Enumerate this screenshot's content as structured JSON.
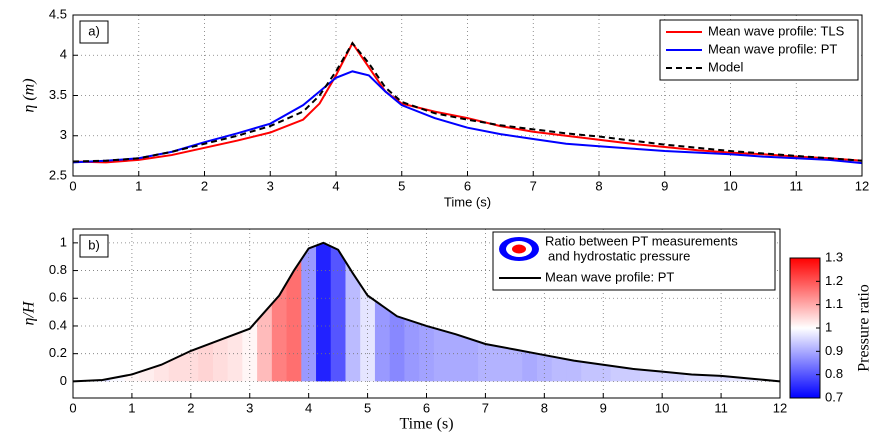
{
  "chart_data": [
    {
      "type": "line",
      "annotation": "a)",
      "xlabel": "Time (s)",
      "ylabel": "η (m)",
      "xlim": [
        0,
        12
      ],
      "ylim": [
        2.5,
        4.5
      ],
      "xticks": [
        0,
        1,
        2,
        3,
        4,
        5,
        6,
        7,
        8,
        9,
        10,
        11,
        12
      ],
      "yticks": [
        2.5,
        3,
        3.5,
        4,
        4.5
      ],
      "grid": true,
      "legend": "upper right",
      "x": [
        0,
        0.5,
        1,
        1.5,
        2,
        2.5,
        3,
        3.5,
        3.75,
        4,
        4.25,
        4.5,
        4.75,
        5,
        5.5,
        6,
        6.5,
        7,
        7.5,
        8,
        8.5,
        9,
        9.5,
        10,
        10.5,
        11,
        11.5,
        12
      ],
      "series": [
        {
          "name": "Mean wave profile: TLS",
          "color": "#ff0000",
          "values": [
            2.68,
            2.67,
            2.7,
            2.76,
            2.85,
            2.94,
            3.04,
            3.2,
            3.4,
            3.75,
            4.15,
            3.85,
            3.55,
            3.4,
            3.3,
            3.22,
            3.12,
            3.05,
            3.0,
            2.95,
            2.9,
            2.86,
            2.82,
            2.79,
            2.77,
            2.74,
            2.72,
            2.69
          ]
        },
        {
          "name": "Mean wave profile: PT",
          "color": "#0000ff",
          "values": [
            2.67,
            2.69,
            2.72,
            2.8,
            2.92,
            3.03,
            3.15,
            3.38,
            3.55,
            3.72,
            3.8,
            3.75,
            3.55,
            3.38,
            3.22,
            3.1,
            3.02,
            2.96,
            2.9,
            2.87,
            2.84,
            2.81,
            2.79,
            2.77,
            2.74,
            2.72,
            2.7,
            2.66
          ]
        },
        {
          "name": "Model",
          "color": "#000000",
          "dashed": true,
          "values": [
            2.68,
            2.69,
            2.72,
            2.8,
            2.9,
            3.0,
            3.12,
            3.3,
            3.5,
            3.8,
            4.15,
            3.9,
            3.6,
            3.42,
            3.28,
            3.2,
            3.13,
            3.08,
            3.03,
            2.99,
            2.94,
            2.89,
            2.85,
            2.81,
            2.78,
            2.75,
            2.72,
            2.69
          ]
        }
      ]
    },
    {
      "type": "heat-line",
      "annotation": "b)",
      "xlabel": "Time (s)",
      "ylabel": "η/H",
      "xlim": [
        0,
        12
      ],
      "ylim": [
        -0.12,
        1.1
      ],
      "xticks": [
        0,
        1,
        2,
        3,
        4,
        5,
        6,
        7,
        8,
        9,
        10,
        11,
        12
      ],
      "yticks": [
        0,
        0.2,
        0.4,
        0.6,
        0.8,
        1
      ],
      "grid": true,
      "legend": "upper right",
      "x": [
        0,
        0.5,
        1,
        1.5,
        2,
        2.5,
        3,
        3.5,
        3.75,
        4,
        4.25,
        4.5,
        4.75,
        5,
        5.5,
        6,
        6.5,
        7,
        7.5,
        8,
        8.5,
        9,
        9.5,
        10,
        10.5,
        11,
        11.5,
        12
      ],
      "series": [
        {
          "name": "Mean wave profile: PT",
          "color": "#000000",
          "values": [
            0,
            0.01,
            0.05,
            0.12,
            0.22,
            0.3,
            0.38,
            0.62,
            0.8,
            0.96,
            1.0,
            0.95,
            0.78,
            0.62,
            0.47,
            0.4,
            0.34,
            0.27,
            0.23,
            0.19,
            0.15,
            0.12,
            0.09,
            0.07,
            0.05,
            0.04,
            0.02,
            0
          ]
        }
      ],
      "pressure_ratio": {
        "name": [
          "Ratio between PT measurements",
          "and hydrostatic pressure"
        ],
        "x": [
          0,
          0.25,
          0.5,
          0.75,
          1,
          1.25,
          1.5,
          1.75,
          2,
          2.25,
          2.5,
          2.75,
          3,
          3.25,
          3.5,
          3.75,
          4,
          4.25,
          4.5,
          4.75,
          5,
          5.25,
          5.5,
          5.75,
          6,
          6.25,
          6.5,
          6.75,
          7,
          7.25,
          7.5,
          7.75,
          8,
          8.25,
          8.5,
          8.75,
          9,
          9.25,
          9.5,
          9.75,
          10,
          10.25,
          10.5,
          10.75,
          11,
          11.25,
          11.5,
          11.75,
          12
        ],
        "values": [
          0.97,
          0.96,
          0.95,
          0.99,
          1.01,
          1.02,
          1.03,
          1.04,
          1.04,
          1.05,
          1.04,
          1.03,
          1.01,
          1.08,
          1.15,
          1.17,
          0.88,
          0.74,
          0.8,
          0.92,
          0.97,
          0.88,
          0.86,
          0.88,
          0.89,
          0.9,
          0.9,
          0.9,
          0.91,
          0.91,
          0.91,
          0.9,
          0.91,
          0.92,
          0.92,
          0.93,
          0.93,
          0.94,
          0.94,
          0.95,
          0.95,
          0.95,
          0.96,
          0.96,
          0.96,
          0.97,
          0.97,
          0.98,
          0.99
        ]
      },
      "colorbar": {
        "label": "Pressure ratio",
        "clim": [
          0.7,
          1.3
        ],
        "ticks": [
          0.7,
          0.8,
          0.9,
          1,
          1.1,
          1.2,
          1.3
        ]
      }
    }
  ]
}
